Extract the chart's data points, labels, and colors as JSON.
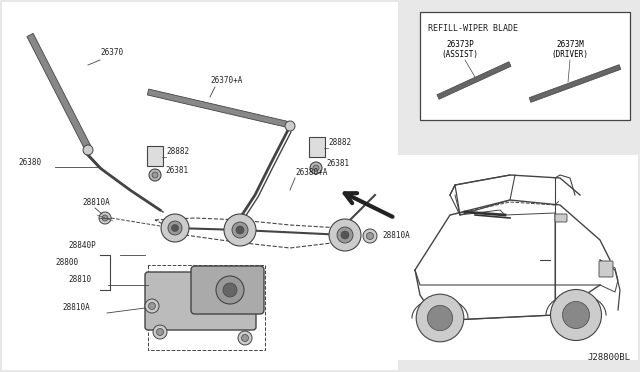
{
  "bg_color": "#e8e8e8",
  "white": "#ffffff",
  "lc": "#444444",
  "dark": "#222222",
  "gray": "#999999",
  "lgray": "#cccccc",
  "footer": "J28800BL",
  "label_fs": 5.5,
  "refill_title": "REFILL-WIPER BLADE",
  "label1a": "26373P",
  "label1b": "(ASSIST)",
  "label2a": "26373M",
  "label2b": "(DRIVER)"
}
